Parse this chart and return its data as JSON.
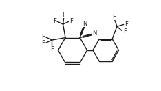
{
  "bg_color": "#ffffff",
  "line_color": "#1a1a1a",
  "line_width": 1.0,
  "font_size": 6.0,
  "figsize": [
    2.34,
    1.32
  ],
  "dpi": 100,
  "xlim": [
    0.0,
    10.0
  ],
  "ylim": [
    0.0,
    5.6
  ]
}
